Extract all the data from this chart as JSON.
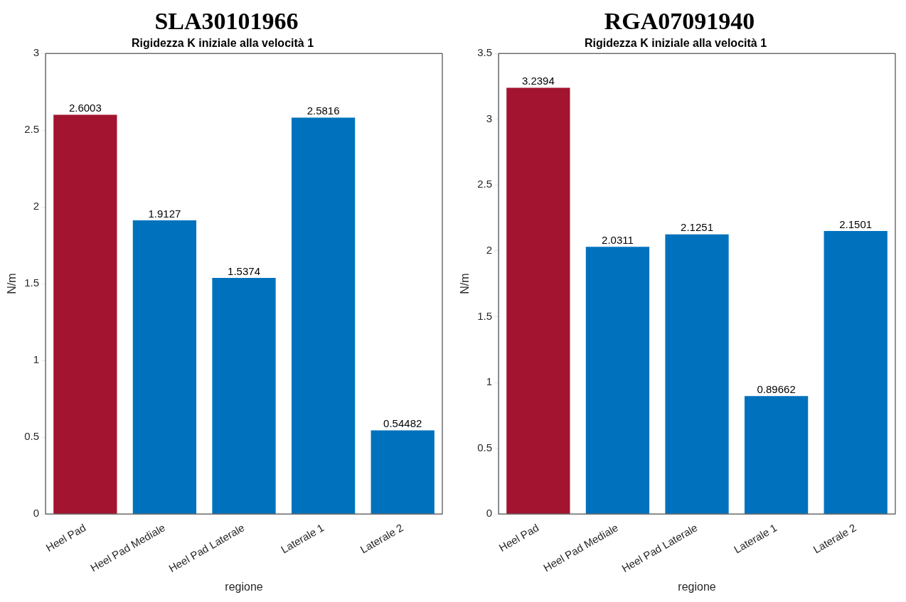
{
  "chart_data": [
    {
      "type": "bar",
      "title": "SLA30101966",
      "subtitle": "Rigidezza K iniziale alla velocità 1",
      "xlabel": "regione",
      "ylabel": "N/m",
      "categories": [
        "Heel Pad",
        "Heel Pad Mediale",
        "Heel Pad Laterale",
        "Laterale 1",
        "Laterale 2"
      ],
      "values": [
        2.6003,
        1.9127,
        1.5374,
        2.5816,
        0.54482
      ],
      "colors": [
        "#a2142f",
        "#0072bd",
        "#0072bd",
        "#0072bd",
        "#0072bd"
      ],
      "ylim": [
        0,
        3
      ],
      "yticks": [
        0,
        0.5,
        1,
        1.5,
        2,
        2.5,
        3
      ],
      "data_labels": true,
      "legend": false
    },
    {
      "type": "bar",
      "title": "RGA07091940",
      "subtitle": "Rigidezza K iniziale alla velocità 1",
      "xlabel": "regione",
      "ylabel": "N/m",
      "categories": [
        "Heel Pad",
        "Heel Pad Mediale",
        "Heel Pad Laterale",
        "Laterale 1",
        "Laterale 2"
      ],
      "values": [
        3.2394,
        2.0311,
        2.1251,
        0.89662,
        2.1501
      ],
      "colors": [
        "#a2142f",
        "#0072bd",
        "#0072bd",
        "#0072bd",
        "#0072bd"
      ],
      "ylim": [
        0,
        3.5
      ],
      "yticks": [
        0,
        0.5,
        1,
        1.5,
        2,
        2.5,
        3,
        3.5
      ],
      "data_labels": true,
      "legend": false
    }
  ]
}
